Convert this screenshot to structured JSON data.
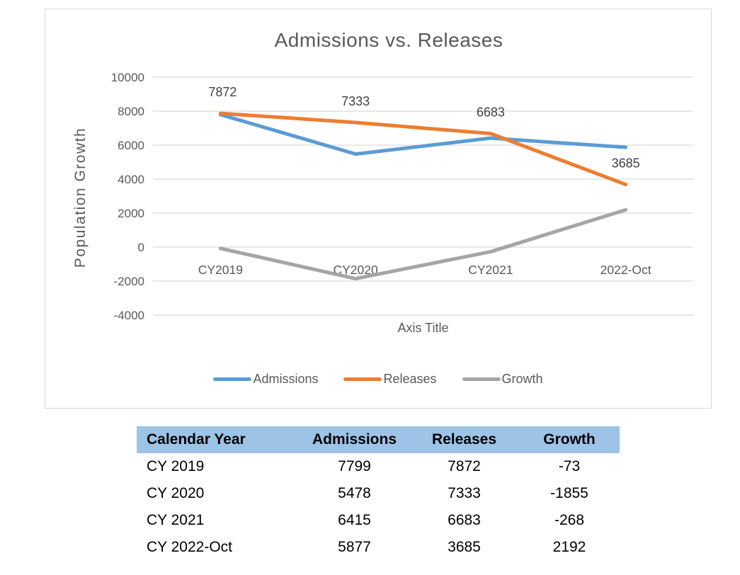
{
  "chart": {
    "title": "Admissions vs. Releases",
    "y_axis_title": "Population Growth",
    "x_axis_title": "Axis Title",
    "axis_text_color": "#595959",
    "data_label_color": "#404040",
    "gridline_color": "#D9D9D9",
    "border_color": "#D9D9D9"
  },
  "chart_data": {
    "type": "line",
    "title": "Admissions vs. Releases",
    "xlabel": "Axis Title",
    "ylabel": "Population Growth",
    "categories": [
      "CY2019",
      "CY2020",
      "CY2021",
      "2022-Oct"
    ],
    "series": [
      {
        "name": "Admissions",
        "color": "#5B9BD5",
        "values": [
          7799,
          5478,
          6415,
          5877
        ]
      },
      {
        "name": "Releases",
        "color": "#ED7D31",
        "values": [
          7872,
          7333,
          6683,
          3685
        ],
        "data_labels": [
          "7872",
          "7333",
          "6683",
          "3685"
        ]
      },
      {
        "name": "Growth",
        "color": "#A5A5A5",
        "values": [
          -73,
          -1855,
          -268,
          2192
        ]
      }
    ],
    "ylim": [
      -4000,
      10000
    ],
    "ytick_step": 2000,
    "yticks": [
      10000,
      8000,
      6000,
      4000,
      2000,
      0,
      -2000,
      -4000
    ],
    "grid": true,
    "legend_position": "bottom"
  },
  "table": {
    "header_bg": "#9DC3E6",
    "headers": [
      "Calendar Year",
      "Admissions",
      "Releases",
      "Growth"
    ],
    "rows": [
      [
        "CY 2019",
        "7799",
        "7872",
        "-73"
      ],
      [
        "CY 2020",
        "5478",
        "7333",
        "-1855"
      ],
      [
        "CY 2021",
        "6415",
        "6683",
        "-268"
      ],
      [
        "CY 2022-Oct",
        "5877",
        "3685",
        "2192"
      ]
    ]
  }
}
